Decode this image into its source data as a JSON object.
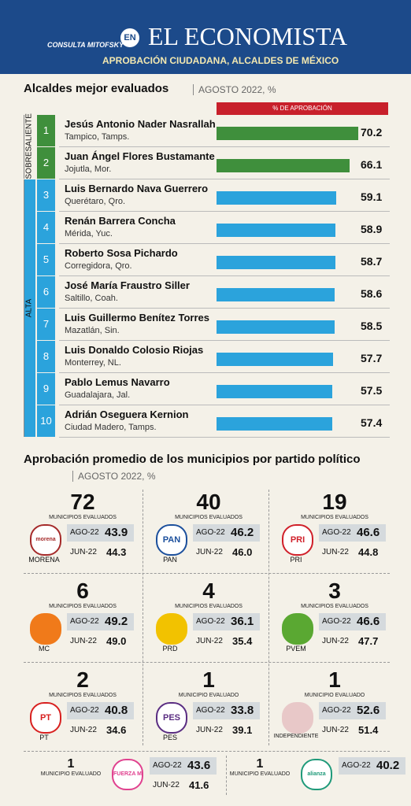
{
  "header": {
    "logo": "CONSULTA MITOFSKY",
    "connector": "EN",
    "title": "EL ECONOMISTA",
    "subtitle": "APROBACIÓN CIUDADANA, ALCALDES DE MÉXICO"
  },
  "ranking": {
    "title": "Alcaldes mejor evaluados",
    "date": "AGOSTO 2022, %",
    "column": "% DE APROBACIÓN",
    "groups": [
      {
        "label": "SOBRESALIENTE",
        "color": "#3f8f3c",
        "rows": [
          {
            "rank": 1,
            "name": "Jesús Antonio Nader Nasrallah",
            "city": "Tampico, Tamps.",
            "value": 70.2
          },
          {
            "rank": 2,
            "name": "Juan Ángel Flores Bustamante",
            "city": "Jojutla, Mor.",
            "value": 66.1
          }
        ]
      },
      {
        "label": "ALTA",
        "color": "#2ba3dc",
        "rows": [
          {
            "rank": 3,
            "name": "Luis Bernardo Nava Guerrero",
            "city": "Querétaro, Qro.",
            "value": 59.1
          },
          {
            "rank": 4,
            "name": "Renán Barrera Concha",
            "city": "Mérida, Yuc.",
            "value": 58.9
          },
          {
            "rank": 5,
            "name": "Roberto Sosa Pichardo",
            "city": "Corregidora, Qro.",
            "value": 58.7
          },
          {
            "rank": 6,
            "name": "José María Fraustro Siller",
            "city": "Saltillo, Coah.",
            "value": 58.6
          },
          {
            "rank": 7,
            "name": "Luis Guillermo Benítez Torres",
            "city": "Mazatlán, Sin.",
            "value": 58.5
          },
          {
            "rank": 8,
            "name": "Luis Donaldo Colosio Riojas",
            "city": "Monterrey, NL.",
            "value": 57.7
          },
          {
            "rank": 9,
            "name": "Pablo Lemus Navarro",
            "city": "Guadalajara, Jal.",
            "value": 57.5
          },
          {
            "rank": 10,
            "name": "Adrián Oseguera Kernion",
            "city": "Ciudad Madero, Tamps.",
            "value": 57.4
          }
        ]
      }
    ]
  },
  "parties": {
    "title": "Aprobación promedio de los municipios por partido político",
    "date": "AGOSTO 2022, %",
    "items": [
      {
        "count": "72",
        "count_label": "MUNICIPIOS EVALUADOS",
        "logo": "morena",
        "logo_color": "#a52a2a",
        "name": "MORENA",
        "ago_label": "AGO-22",
        "ago": "43.9",
        "jun_label": "JUN-22",
        "jun": "44.3"
      },
      {
        "count": "40",
        "count_label": "MUNICIPIOS EVALUADOS",
        "logo": "PAN",
        "logo_color": "#1b4f9c",
        "name": "PAN",
        "ago_label": "AGO-22",
        "ago": "46.2",
        "jun_label": "JUN-22",
        "jun": "46.0"
      },
      {
        "count": "19",
        "count_label": "MUNICIPIOS EVALUADOS",
        "logo": "PRI",
        "logo_color": "#d0202a",
        "name": "PRI",
        "ago_label": "AGO-22",
        "ago": "46.6",
        "jun_label": "JUN-22",
        "jun": "44.8"
      },
      {
        "count": "6",
        "count_label": "MUNICIPIOS EVALUADOS",
        "logo_color": "#f07a1a",
        "name": "MC",
        "ago_label": "AGO-22",
        "ago": "49.2",
        "jun_label": "JUN-22",
        "jun": "49.0"
      },
      {
        "count": "4",
        "count_label": "MUNICIPIOS EVALUADOS",
        "logo_color": "#f2c200",
        "name": "PRD",
        "ago_label": "AGO-22",
        "ago": "36.1",
        "jun_label": "JUN-22",
        "jun": "35.4"
      },
      {
        "count": "3",
        "count_label": "MUNICIPIOS EVALUADOS",
        "logo_color": "#5aa832",
        "name": "PVEM",
        "ago_label": "AGO-22",
        "ago": "46.6",
        "jun_label": "JUN-22",
        "jun": "47.7"
      },
      {
        "count": "2",
        "count_label": "MUNICIPIOS EVALUADOS",
        "logo": "PT",
        "logo_color": "#d8201f",
        "name": "PT",
        "ago_label": "AGO-22",
        "ago": "40.8",
        "jun_label": "JUN-22",
        "jun": "34.6"
      },
      {
        "count": "1",
        "count_label": "MUNICIPIO EVALUADO",
        "logo": "PES",
        "logo_color": "#5a2d82",
        "name": "PES",
        "ago_label": "AGO-22",
        "ago": "33.8",
        "jun_label": "JUN-22",
        "jun": "39.1"
      },
      {
        "count": "1",
        "count_label": "MUNICIPIO EVALUADO",
        "logo_color": "#e8c8c8",
        "name": "INDEPENDIENTE",
        "ago_label": "AGO-22",
        "ago": "52.6",
        "jun_label": "JUN-22",
        "jun": "51.4"
      }
    ],
    "small": [
      {
        "count": "1",
        "count_label": "MUNICIPIO EVALUADO",
        "logo": "FUERZA MÉXICO",
        "logo_color": "#e0418f",
        "ago_label": "AGO-22",
        "ago": "43.6",
        "jun_label": "JUN-22",
        "jun": "41.6"
      },
      {
        "count": "1",
        "count_label": "MUNICIPIO EVALUADO",
        "logo": "alianza",
        "logo_color": "#1f9a7a",
        "ago_label": "AGO-22",
        "ago": "40.2"
      }
    ]
  }
}
